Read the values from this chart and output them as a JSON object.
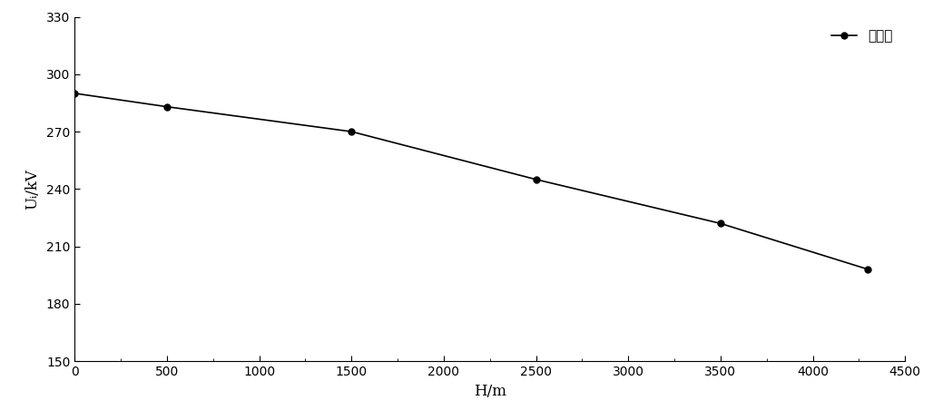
{
  "x": [
    0,
    500,
    1500,
    2500,
    3500,
    4300
  ],
  "y": [
    290,
    283,
    270,
    245,
    222,
    198
  ],
  "line_color": "#000000",
  "marker": "o",
  "marker_size": 5,
  "marker_facecolor": "#000000",
  "xlabel": "H/m",
  "ylabel": "Uᵢ/kV",
  "xlim": [
    0,
    4500
  ],
  "ylim": [
    150,
    330
  ],
  "xticks": [
    0,
    500,
    1000,
    1500,
    2000,
    2500,
    3000,
    3500,
    4000,
    4500
  ],
  "yticks": [
    150,
    180,
    210,
    240,
    270,
    300,
    330
  ],
  "legend_label": "间隔棒",
  "background_color": "#ffffff",
  "legend_loc": "upper right"
}
